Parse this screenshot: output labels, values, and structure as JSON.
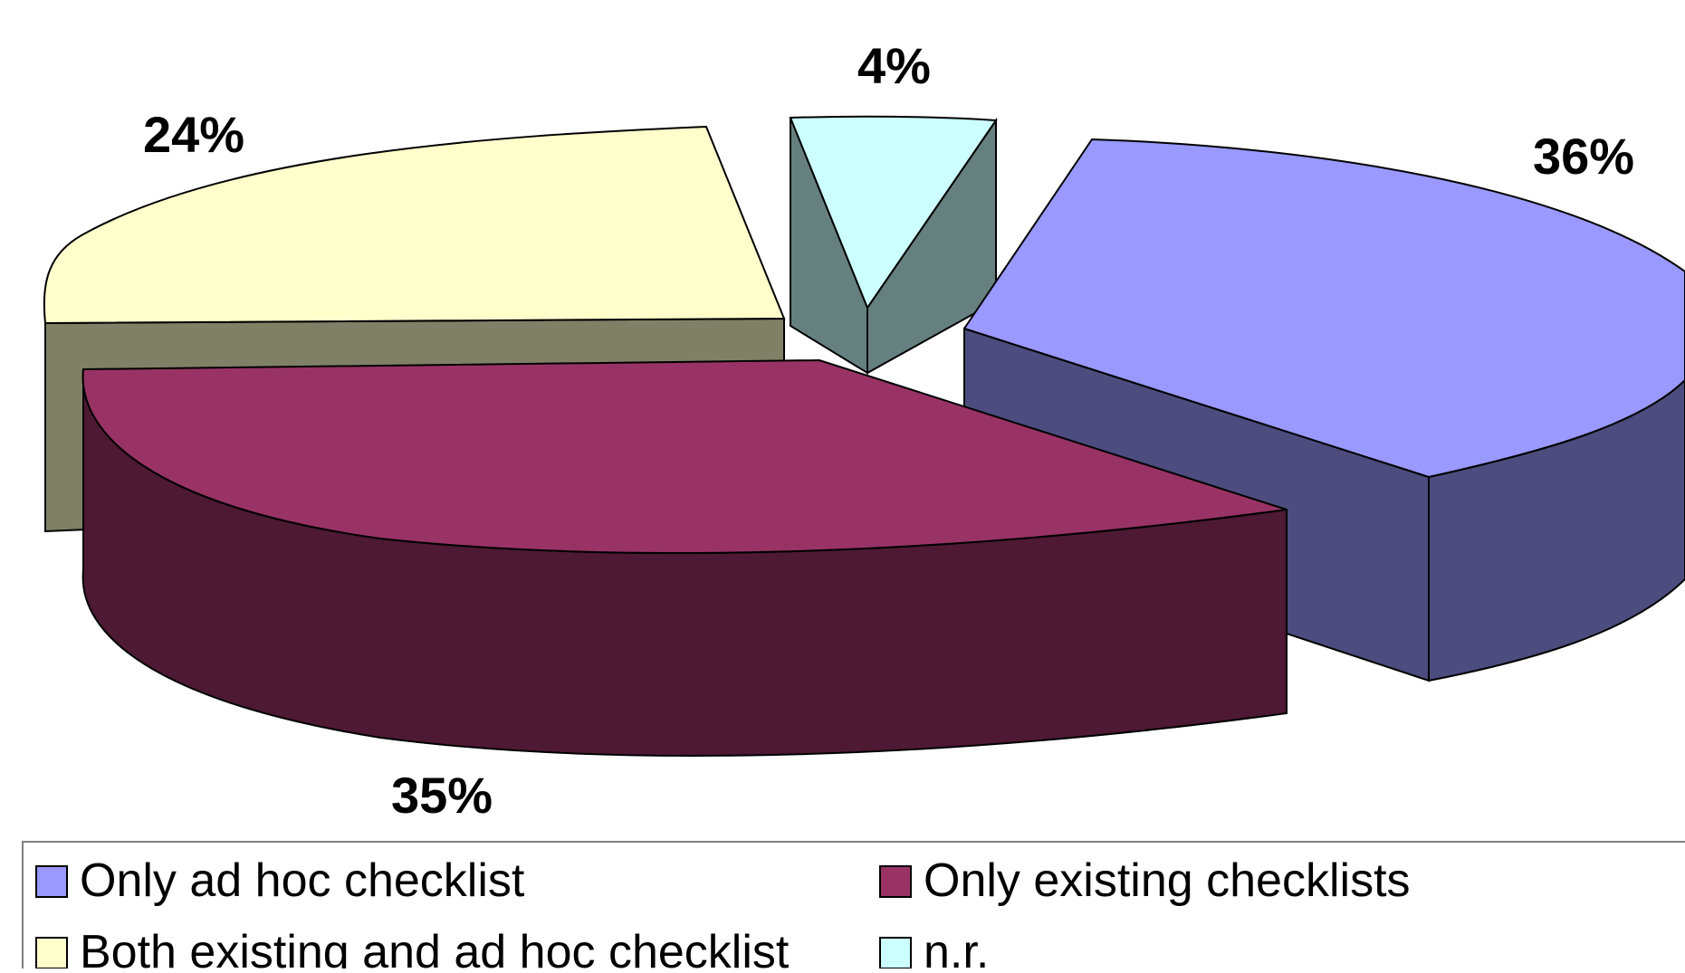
{
  "chart_data": {
    "type": "pie",
    "subtype": "3d-exploded",
    "title": "",
    "legend_position": "bottom",
    "slices": [
      {
        "label": "Only ad hoc checklist",
        "value": 36,
        "display": "36%",
        "color": "#9999FF",
        "side_color": "#4C4C7E"
      },
      {
        "label": "Only existing checklists",
        "value": 35,
        "display": "35%",
        "color": "#993366",
        "side_color": "#4D1933"
      },
      {
        "label": "Both existing and ad hoc checklist",
        "value": 24,
        "display": "24%",
        "color": "#FFFFCC",
        "side_color": "#808066"
      },
      {
        "label": "n.r.",
        "value": 4,
        "display": "4%",
        "color": "#CCFFFF",
        "side_color": "#668080"
      }
    ]
  }
}
